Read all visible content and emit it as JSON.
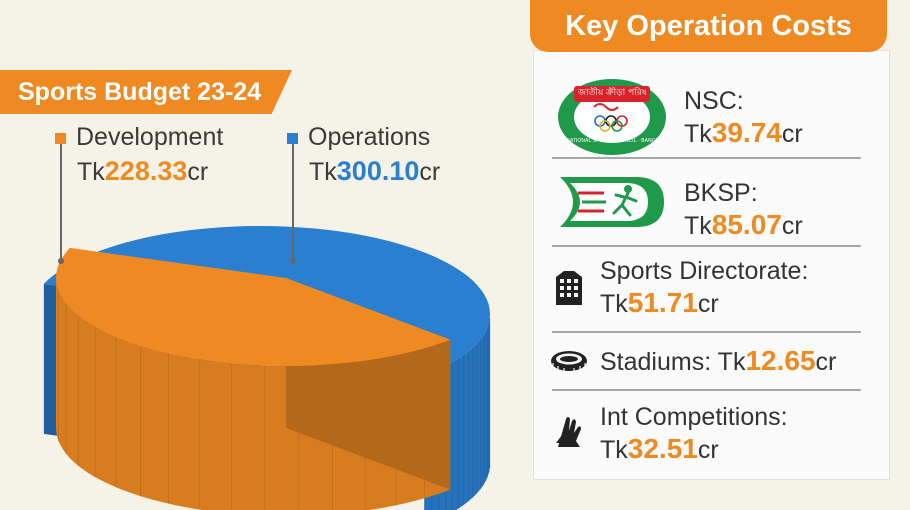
{
  "banner": {
    "title": "Sports Budget 23-24"
  },
  "legend": {
    "development": {
      "label": "Development",
      "prefix": "Tk",
      "value": "228.33",
      "suffix": "cr",
      "color": "#ef8a22"
    },
    "operations": {
      "label": "Operations",
      "prefix": "Tk",
      "value": "300.10",
      "suffix": "cr",
      "color": "#2a7fd0"
    }
  },
  "chart_data": {
    "type": "pie",
    "title": "Sports Budget 23-24",
    "unit": "Tk crore",
    "slices": [
      {
        "label": "Development",
        "value": 228.33,
        "color": "#ef8a22"
      },
      {
        "label": "Operations",
        "value": 300.1,
        "color": "#2a7fd0"
      }
    ]
  },
  "costs_panel": {
    "title": "Key Operation Costs",
    "items": [
      {
        "name": "NSC:",
        "prefix": "Tk",
        "value": "39.74",
        "suffix": "cr",
        "icon": "nsc-logo-icon",
        "logo_text": "জাতীয় ক্রীড়া পরিষদ",
        "logo_subtext": "NATIONAL SPORTS COUNCIL · BANGLADESH"
      },
      {
        "name": "BKSP:",
        "prefix": "Tk",
        "value": "85.07",
        "suffix": "cr",
        "icon": "bksp-logo-icon"
      },
      {
        "name": "Sports Directorate:",
        "prefix": "Tk",
        "value": "51.71",
        "suffix": "cr",
        "icon": "building-icon"
      },
      {
        "name": "Stadiums:",
        "prefix": "Tk",
        "value": "12.65",
        "suffix": "cr",
        "icon": "stadium-icon"
      },
      {
        "name": "Int Competitions:",
        "prefix": "Tk",
        "value": "32.51",
        "suffix": "cr",
        "icon": "handshake-icon"
      }
    ]
  },
  "colors": {
    "accent": "#ef8a22",
    "blue": "#2a7fd0",
    "background": "#f5f3e7"
  }
}
